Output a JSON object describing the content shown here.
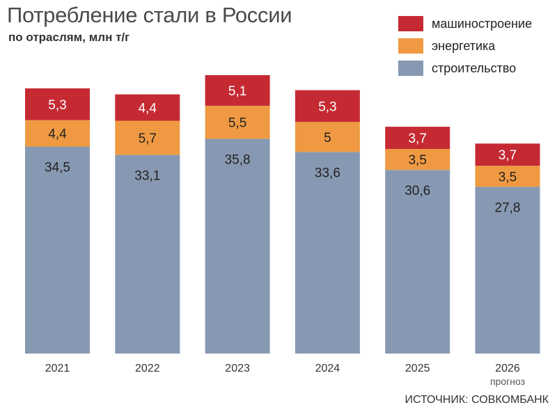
{
  "title": "Потребление стали в России",
  "subtitle": "по отраслям, млн т/г",
  "source": "ИСТОЧНИК: СОВКОМБАНК",
  "chart_data": {
    "type": "bar",
    "stacked": true,
    "categories": [
      "2021",
      "2022",
      "2023",
      "2024",
      "2025",
      "2026"
    ],
    "category_notes": [
      "",
      "",
      "",
      "",
      "",
      "прогноз"
    ],
    "series": [
      {
        "name": "строительство",
        "color": "#8799b2",
        "values": [
          34.5,
          33.1,
          35.8,
          33.6,
          30.6,
          27.8
        ],
        "labels": [
          "34,5",
          "33,1",
          "35,8",
          "33,6",
          "30,6",
          "27,8"
        ]
      },
      {
        "name": "энергетика",
        "color": "#ef9a42",
        "values": [
          4.4,
          5.7,
          5.5,
          5,
          3.5,
          3.5
        ],
        "labels": [
          "4,4",
          "5,7",
          "5,5",
          "5",
          "3,5",
          "3,5"
        ]
      },
      {
        "name": "машиностроение",
        "color": "#c52a33",
        "values": [
          5.3,
          4.4,
          5.1,
          5.3,
          3.7,
          3.7
        ],
        "labels": [
          "5,3",
          "4,4",
          "5,1",
          "5,3",
          "3,7",
          "3,7"
        ]
      }
    ],
    "legend_order": [
      "машиностроение",
      "энергетика",
      "строительство"
    ],
    "legend_position": "top-right",
    "ylim": [
      0,
      46.4
    ],
    "grid": false
  }
}
